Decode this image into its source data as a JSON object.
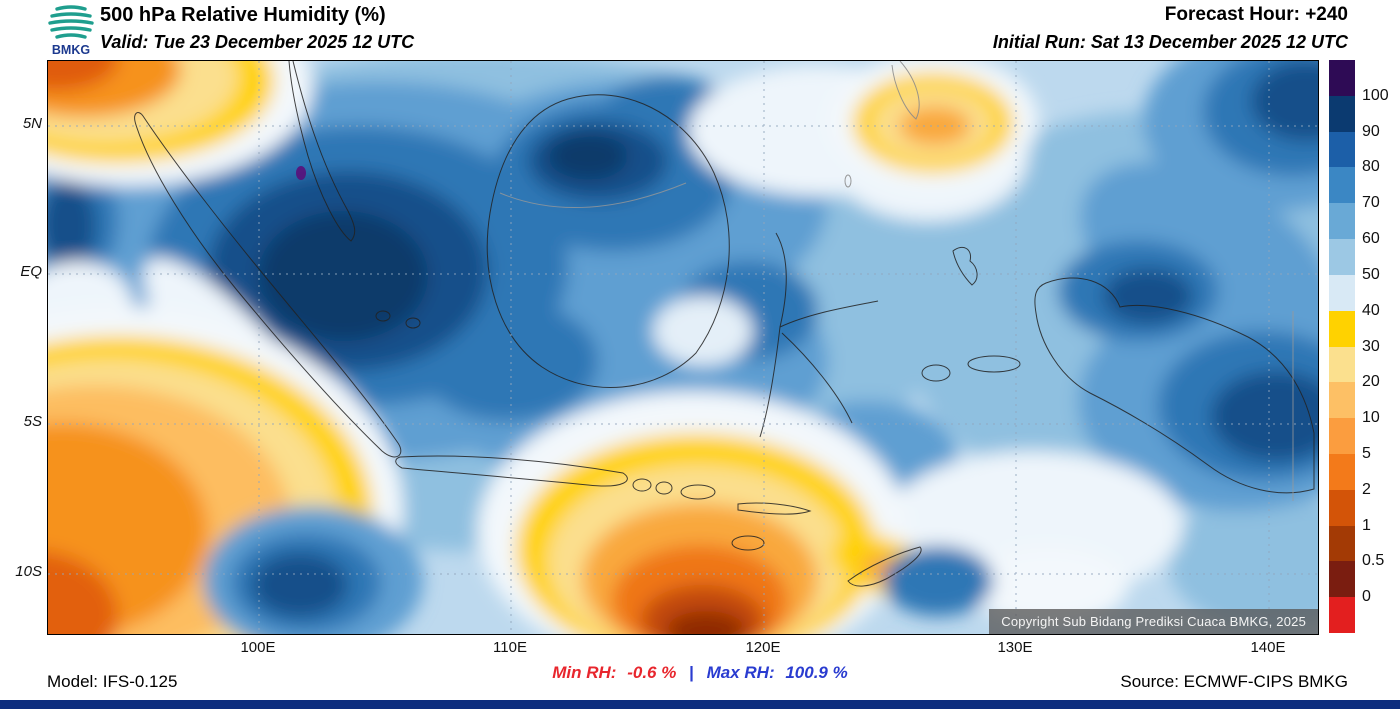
{
  "header": {
    "logo": "BMKG",
    "title": "500 hPa Relative Humidity (%)",
    "valid": "Valid: Tue 23 December 2025 12 UTC",
    "forecast_hour": "Forecast Hour: +240",
    "initial_run": "Initial Run: Sat 13 December 2025 12 UTC"
  },
  "map_overlay": {
    "copyright": "Copyright Sub Bidang Prediksi Cuaca BMKG, 2025"
  },
  "footer": {
    "model": "Model: IFS-0.125",
    "min_label": "Min RH:",
    "min_value": "-0.6 %",
    "separator": "|",
    "max_label": "Max RH:",
    "max_value": "100.9 %",
    "source": "Source: ECMWF-CIPS BMKG"
  },
  "colors": {
    "min_rh_text": "#e8262d",
    "max_rh_text": "#2a3cd0",
    "bottom_bar": "#0c2d7e"
  },
  "chart_data": {
    "type": "heatmap",
    "title": "500 hPa Relative Humidity (%)",
    "units": "%",
    "valid_time": "Tue 23 December 2025 12 UTC",
    "initial_run": "Sat 13 December 2025 12 UTC",
    "forecast_hour": "+240",
    "model": "IFS-0.125",
    "source": "ECMWF-CIPS BMKG",
    "x_ticks": [
      "100E",
      "110E",
      "120E",
      "130E",
      "140E"
    ],
    "y_ticks": [
      "5N",
      "EQ",
      "5S",
      "10S"
    ],
    "min_rh": -0.6,
    "max_rh": 100.9,
    "colorbar": {
      "labels": [
        "100",
        "90",
        "80",
        "70",
        "60",
        "50",
        "40",
        "30",
        "20",
        "10",
        "5",
        "2",
        "1",
        "0.5",
        "0"
      ],
      "segment_colors_top_to_bottom": [
        "#2e0b55",
        "#0b3a70",
        "#1c5fa8",
        "#3b87c4",
        "#69a9d6",
        "#9cc8e4",
        "#d8e9f5",
        "#ffd200",
        "#fbe08e",
        "#fdc065",
        "#fb9d3f",
        "#f37a1a",
        "#d35408",
        "#a33a05",
        "#7a1d10",
        "#e31f1f"
      ]
    }
  }
}
